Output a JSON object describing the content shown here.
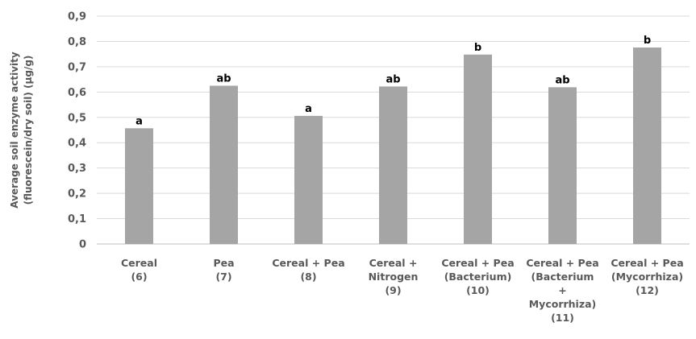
{
  "chart_data": {
    "type": "bar",
    "ylabel_lines": [
      "Average soil enzyme activity",
      "(fluorescein/dry soil) (µg/g)"
    ],
    "ylim": [
      0,
      0.9
    ],
    "yticks": [
      "0",
      "0,1",
      "0,2",
      "0,3",
      "0,4",
      "0,5",
      "0,6",
      "0,7",
      "0,8",
      "0,9"
    ],
    "grid": true,
    "bar_color": "#a5a5a5",
    "categories": [
      [
        "Cereal",
        "(6)"
      ],
      [
        "Pea",
        "(7)"
      ],
      [
        "Cereal + Pea",
        "(8)"
      ],
      [
        "Cereal +",
        "Nitrogen",
        "(9)"
      ],
      [
        "Cereal + Pea",
        "(Bacterium)",
        "(10)"
      ],
      [
        "Cereal + Pea",
        "(Bacterium",
        "+",
        "Mycorrhiza)",
        "(11)"
      ],
      [
        "Cereal + Pea",
        "(Mycorrhiza)",
        "(12)"
      ]
    ],
    "values": [
      0.457,
      0.625,
      0.506,
      0.622,
      0.748,
      0.619,
      0.776
    ],
    "data_labels": [
      "a",
      "ab",
      "a",
      "ab",
      "b",
      "ab",
      "b"
    ]
  }
}
